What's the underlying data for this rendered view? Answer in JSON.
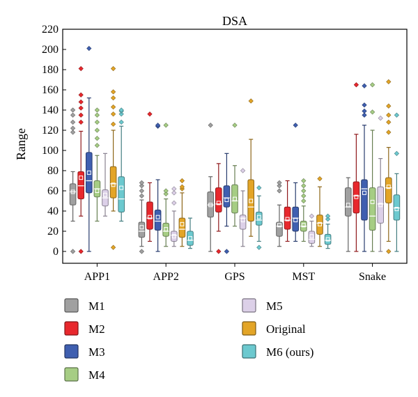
{
  "chart_data": {
    "type": "box",
    "title": "DSA",
    "xlabel": "",
    "ylabel": "Range",
    "ylim": [
      0,
      220
    ],
    "yticks": [
      0,
      20,
      40,
      60,
      80,
      100,
      120,
      140,
      160,
      180,
      200,
      220
    ],
    "grid": false,
    "legend_position": "bottom",
    "categories": [
      "APP1",
      "APP2",
      "GPS",
      "MST",
      "Snake"
    ],
    "series": [
      {
        "name": "M1",
        "color": "#a0a0a0",
        "boxes": [
          {
            "whisker_low": 30,
            "q1": 46,
            "median": 59,
            "q3": 67,
            "whisker_high": 79,
            "mean": 59,
            "outliers": [
              0,
              118,
              122,
              128,
              135,
              140
            ]
          },
          {
            "whisker_low": 5,
            "q1": 14,
            "median": 20,
            "q3": 29,
            "whisker_high": 51,
            "mean": 24,
            "outliers": [
              0,
              55,
              60,
              65,
              68
            ]
          },
          {
            "whisker_low": 0,
            "q1": 34,
            "median": 46,
            "q3": 59,
            "whisker_high": 74,
            "mean": 46,
            "outliers": [
              125
            ]
          },
          {
            "whisker_low": 5,
            "q1": 15,
            "median": 25,
            "q3": 29,
            "whisker_high": 46,
            "mean": 26,
            "outliers": [
              60,
              65,
              68
            ]
          },
          {
            "whisker_low": 0,
            "q1": 35,
            "median": 44,
            "q3": 63,
            "whisker_high": 73,
            "mean": 46,
            "outliers": []
          }
        ]
      },
      {
        "name": "M2",
        "color": "#e8282d",
        "boxes": [
          {
            "whisker_low": 35,
            "q1": 52,
            "median": 65,
            "q3": 79,
            "whisker_high": 119,
            "mean": 73,
            "outliers": [
              0,
              128,
              135,
              142,
              148,
              155,
              181
            ]
          },
          {
            "whisker_low": 10,
            "q1": 22,
            "median": 33,
            "q3": 49,
            "whisker_high": 68,
            "mean": 34,
            "outliers": [
              136
            ]
          },
          {
            "whisker_low": 20,
            "q1": 39,
            "median": 47,
            "q3": 63,
            "whisker_high": 87,
            "mean": 48,
            "outliers": [
              0
            ]
          },
          {
            "whisker_low": 10,
            "q1": 22,
            "median": 31,
            "q3": 44,
            "whisker_high": 70,
            "mean": 32,
            "outliers": []
          },
          {
            "whisker_low": 0,
            "q1": 38,
            "median": 55,
            "q3": 69,
            "whisker_high": 116,
            "mean": 54,
            "outliers": [
              165
            ]
          }
        ]
      },
      {
        "name": "M3",
        "color": "#3f5fb0",
        "boxes": [
          {
            "whisker_low": 0,
            "q1": 58,
            "median": 70,
            "q3": 98,
            "whisker_high": 152,
            "mean": 78,
            "outliers": [
              201
            ]
          },
          {
            "whisker_low": 0,
            "q1": 21,
            "median": 30,
            "q3": 41,
            "whisker_high": 71,
            "mean": 34,
            "outliers": [
              124,
              125
            ]
          },
          {
            "whisker_low": 25,
            "q1": 44,
            "median": 53,
            "q3": 65,
            "whisker_high": 97,
            "mean": 51,
            "outliers": [
              0
            ]
          },
          {
            "whisker_low": 10,
            "q1": 20,
            "median": 33,
            "q3": 44,
            "whisker_high": 68,
            "mean": 31,
            "outliers": [
              125
            ]
          },
          {
            "whisker_low": 0,
            "q1": 31,
            "median": 62,
            "q3": 71,
            "whisker_high": 125,
            "mean": 58,
            "outliers": [
              135,
              139,
              145,
              164
            ]
          }
        ]
      },
      {
        "name": "M4",
        "color": "#a6cd84",
        "boxes": [
          {
            "whisker_low": 30,
            "q1": 54,
            "median": 62,
            "q3": 70,
            "whisker_high": 95,
            "mean": 60,
            "outliers": [
              105,
              112,
              120,
              128,
              135,
              140
            ]
          },
          {
            "whisker_low": 5,
            "q1": 15,
            "median": 20,
            "q3": 28,
            "whisker_high": 52,
            "mean": 22,
            "outliers": [
              57,
              60,
              125
            ]
          },
          {
            "whisker_low": 25,
            "q1": 38,
            "median": 50,
            "q3": 66,
            "whisker_high": 85,
            "mean": 52,
            "outliers": [
              125
            ]
          },
          {
            "whisker_low": 10,
            "q1": 20,
            "median": 25,
            "q3": 30,
            "whisker_high": 45,
            "mean": 26,
            "outliers": [
              50,
              55,
              60,
              65,
              70
            ]
          },
          {
            "whisker_low": 0,
            "q1": 21,
            "median": 35,
            "q3": 63,
            "whisker_high": 120,
            "mean": 49,
            "outliers": [
              138,
              165
            ]
          }
        ]
      },
      {
        "name": "M5",
        "color": "#dcd0e8",
        "boxes": [
          {
            "whisker_low": 35,
            "q1": 45,
            "median": 53,
            "q3": 61,
            "whisker_high": 97,
            "mean": 56,
            "outliers": []
          },
          {
            "whisker_low": 5,
            "q1": 10,
            "median": 16,
            "q3": 20,
            "whisker_high": 40,
            "mean": 15,
            "outliers": [
              48,
              58,
              62
            ]
          },
          {
            "whisker_low": 5,
            "q1": 22,
            "median": 33,
            "q3": 36,
            "whisker_high": 60,
            "mean": 31,
            "outliers": [
              80
            ]
          },
          {
            "whisker_low": 5,
            "q1": 8,
            "median": 12,
            "q3": 20,
            "whisker_high": 30,
            "mean": 15,
            "outliers": [
              35
            ]
          },
          {
            "whisker_low": 0,
            "q1": 28,
            "median": 47,
            "q3": 64,
            "whisker_high": 92,
            "mean": 46,
            "outliers": [
              132
            ]
          }
        ]
      },
      {
        "name": "Original",
        "color": "#e3a527",
        "boxes": [
          {
            "whisker_low": 40,
            "q1": 53,
            "median": 67,
            "q3": 84,
            "whisker_high": 120,
            "mean": 66,
            "outliers": [
              4,
              126,
              136,
              143,
              152,
              158,
              181
            ]
          },
          {
            "whisker_low": 5,
            "q1": 14,
            "median": 22,
            "q3": 33,
            "whisker_high": 58,
            "mean": 27,
            "outliers": [
              62,
              64,
              70
            ]
          },
          {
            "whisker_low": 15,
            "q1": 30,
            "median": 44,
            "q3": 71,
            "whisker_high": 111,
            "mean": 50,
            "outliers": [
              149
            ]
          },
          {
            "whisker_low": 5,
            "q1": 17,
            "median": 28,
            "q3": 36,
            "whisker_high": 64,
            "mean": 27,
            "outliers": [
              72
            ]
          },
          {
            "whisker_low": 10,
            "q1": 48,
            "median": 63,
            "q3": 73,
            "whisker_high": 103,
            "mean": 64,
            "outliers": [
              0,
              118,
              128,
              135,
              144,
              168
            ]
          }
        ]
      },
      {
        "name": "M6 (ours)",
        "color": "#6cc9cf",
        "boxes": [
          {
            "whisker_low": 30,
            "q1": 39,
            "median": 52,
            "q3": 74,
            "whisker_high": 124,
            "mean": 63,
            "outliers": [
              128,
              136,
              139,
              140
            ]
          },
          {
            "whisker_low": 3,
            "q1": 6,
            "median": 11,
            "q3": 20,
            "whisker_high": 33,
            "mean": 13,
            "outliers": []
          },
          {
            "whisker_low": 10,
            "q1": 26,
            "median": 31,
            "q3": 39,
            "whisker_high": 55,
            "mean": 34,
            "outliers": [
              4,
              63
            ]
          },
          {
            "whisker_low": 3,
            "q1": 7,
            "median": 11,
            "q3": 17,
            "whisker_high": 27,
            "mean": 12,
            "outliers": [
              32,
              35
            ]
          },
          {
            "whisker_low": 0,
            "q1": 31,
            "median": 43,
            "q3": 56,
            "whisker_high": 77,
            "mean": 42,
            "outliers": [
              97,
              135
            ]
          }
        ]
      }
    ]
  }
}
